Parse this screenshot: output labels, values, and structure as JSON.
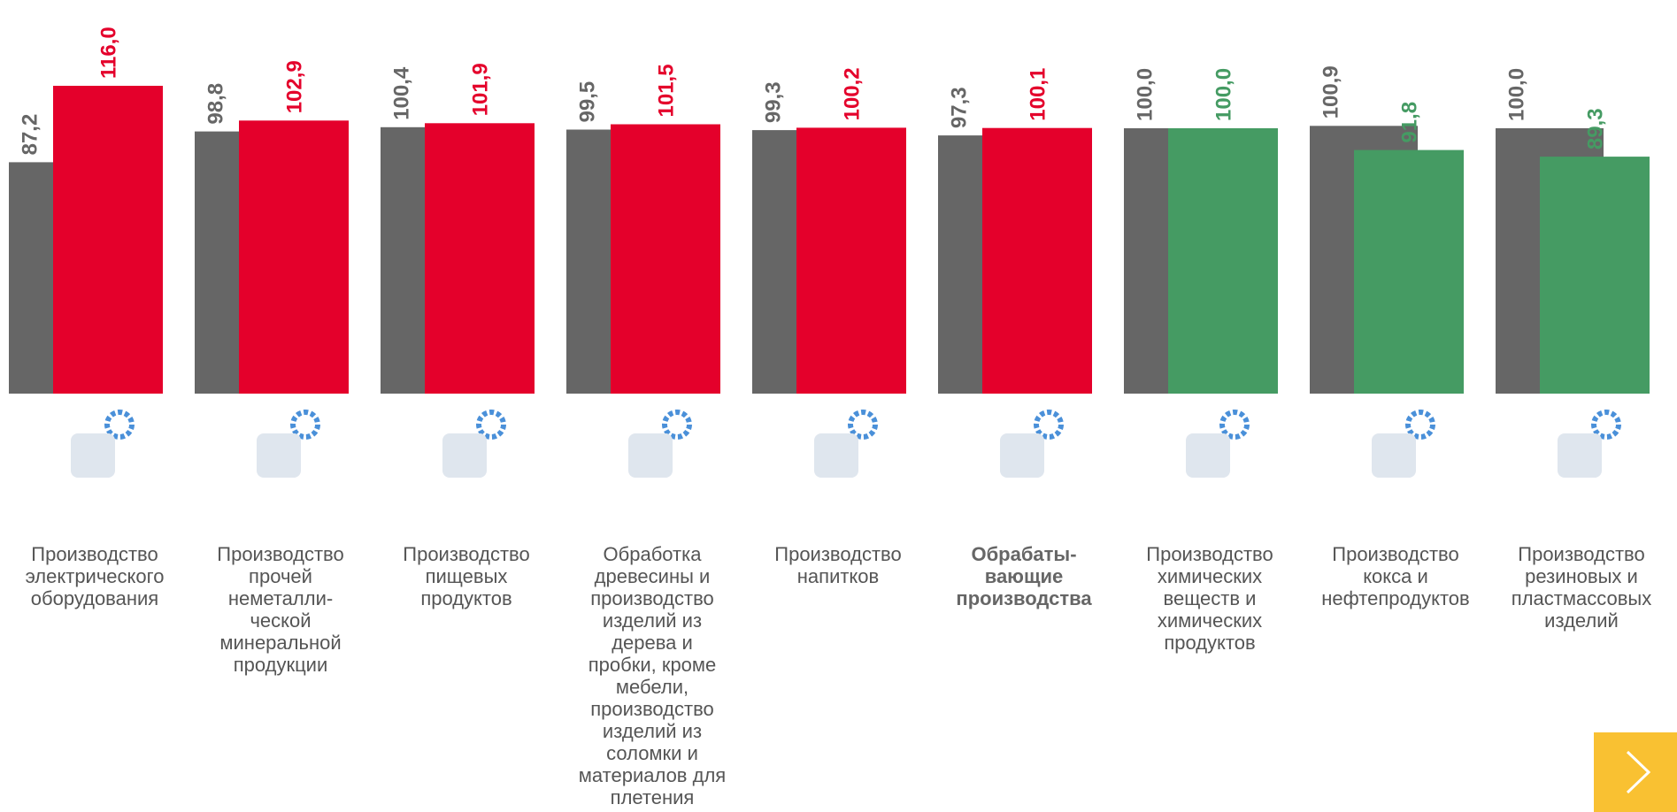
{
  "chart_data": {
    "type": "bar",
    "categories": [
      "Производство\nэлектрического\nоборудования",
      "Производство\nпрочей\nнеметалли-\nческой\nминеральной\nпродукции",
      "Производство\nпищевых\nпродуктов",
      "Обработка\nдревесины и\nпроизводство\nизделий из\nдерева и\nпробки, кроме\nмебели,\nпроизводство\nизделий из\nсоломки и\nматериалов для\nплетения",
      "Производство\nнапитков",
      "Обрабаты-\nвающие\nпроизводства",
      "Производство\nхимических\nвеществ и\nхимических\nпродуктов",
      "Производство\nкокса и\nнефтепродуктов",
      "Производство\nрезиновых и\nпластмассовых\nизделий"
    ],
    "series": [
      {
        "color": "#666666",
        "values": [
          87.2,
          98.8,
          100.4,
          99.5,
          99.3,
          97.3,
          100.0,
          100.9,
          100.0
        ],
        "value_labels": [
          "87,2",
          "98,8",
          "100,4",
          "99,5",
          "99,3",
          "97,3",
          "100,0",
          "100,9",
          "100,0"
        ]
      },
      {
        "colors": [
          "#e4002b",
          "#e4002b",
          "#e4002b",
          "#e4002b",
          "#e4002b",
          "#e4002b",
          "#459b63",
          "#459b63",
          "#459b63"
        ],
        "values": [
          116.0,
          102.9,
          101.9,
          101.5,
          100.2,
          100.1,
          100.0,
          91.8,
          89.3
        ],
        "value_labels": [
          "116,0",
          "102,9",
          "101,9",
          "101,5",
          "100,2",
          "100,1",
          "100,0",
          "91,8",
          "89,3"
        ]
      }
    ],
    "ylim": [
      0,
      145
    ]
  }
}
